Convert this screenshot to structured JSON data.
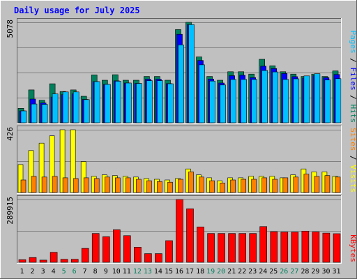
{
  "title": "Daily usage for July 2025",
  "colors": {
    "background": "#c0c0c0",
    "plot_bg": "#c0c0c0",
    "border_light": "#ffffff",
    "border_dark": "#606060",
    "title": "#0000ff",
    "gridline": "#808080",
    "hits": "#00805c",
    "files": "#0000ff",
    "pages": "#00c0ff",
    "visits": "#ffff00",
    "sites": "#ff8000",
    "kbytes": "#ff0000",
    "weekend_label": "#00805c",
    "weekday_label": "#000000"
  },
  "chart_data": [
    {
      "type": "bar",
      "panel": "hits-files-pages",
      "ymax_label": "5078",
      "ymax": 5078,
      "legend": [
        "Pages",
        "Files",
        "Hits"
      ],
      "legend_separator": " / ",
      "categories": [
        "1",
        "2",
        "3",
        "4",
        "5",
        "6",
        "7",
        "8",
        "9",
        "10",
        "11",
        "12",
        "13",
        "14",
        "15",
        "16",
        "17",
        "18",
        "19",
        "20",
        "21",
        "22",
        "23",
        "24",
        "25",
        "26",
        "27",
        "28",
        "29",
        "30",
        "31"
      ],
      "series": [
        {
          "name": "Hits",
          "color": "#00805c",
          "values": [
            730,
            1660,
            1140,
            1970,
            1580,
            1660,
            1340,
            2420,
            2150,
            2430,
            2150,
            2150,
            2340,
            2340,
            2150,
            4710,
            5078,
            3330,
            2340,
            2150,
            2580,
            2580,
            2460,
            3210,
            2880,
            2580,
            2460,
            2340,
            2460,
            2340,
            2620
          ]
        },
        {
          "name": "Files",
          "color": "#0000ff",
          "values": [
            600,
            1200,
            1000,
            1300,
            1420,
            1460,
            1180,
            2080,
            1940,
            2120,
            2010,
            1990,
            2200,
            2200,
            1980,
            4470,
            4960,
            3150,
            2210,
            2010,
            2380,
            2400,
            2280,
            2860,
            2740,
            2490,
            2330,
            2260,
            2380,
            2280,
            2440
          ]
        },
        {
          "name": "Pages",
          "color": "#00c0ff",
          "values": [
            600,
            950,
            930,
            1460,
            1560,
            1560,
            1170,
            2080,
            1940,
            2100,
            2010,
            1990,
            2130,
            2130,
            1970,
            3940,
            4960,
            2930,
            2110,
            1910,
            2190,
            2190,
            2190,
            2640,
            2570,
            2190,
            2220,
            2370,
            2480,
            2160,
            2230
          ]
        }
      ]
    },
    {
      "type": "bar",
      "panel": "visits-sites",
      "ymax_label": "426",
      "ymax": 426,
      "legend": [
        "Sites",
        "Visits"
      ],
      "legend_separator": " / ",
      "categories": [
        "1",
        "2",
        "3",
        "4",
        "5",
        "6",
        "7",
        "8",
        "9",
        "10",
        "11",
        "12",
        "13",
        "14",
        "15",
        "16",
        "17",
        "18",
        "19",
        "20",
        "21",
        "22",
        "23",
        "24",
        "25",
        "26",
        "27",
        "28",
        "29",
        "30",
        "31"
      ],
      "series": [
        {
          "name": "Visits",
          "color": "#ffff00",
          "values": [
            190,
            285,
            335,
            385,
            426,
            426,
            210,
            110,
            120,
            115,
            110,
            105,
            95,
            90,
            85,
            95,
            160,
            120,
            100,
            80,
            100,
            100,
            110,
            110,
            110,
            100,
            120,
            160,
            140,
            140,
            110
          ]
        },
        {
          "name": "Sites",
          "color": "#ff8000",
          "values": [
            85,
            110,
            105,
            110,
            100,
            95,
            100,
            95,
            105,
            100,
            100,
            90,
            80,
            75,
            70,
            90,
            140,
            105,
            80,
            65,
            85,
            90,
            90,
            100,
            90,
            100,
            105,
            125,
            110,
            115,
            105
          ]
        }
      ]
    },
    {
      "type": "bar",
      "panel": "kbytes",
      "ymax_label": "289915",
      "ymax": 289915,
      "legend": [
        "KBytes"
      ],
      "categories": [
        "1",
        "2",
        "3",
        "4",
        "5",
        "6",
        "7",
        "8",
        "9",
        "10",
        "11",
        "12",
        "13",
        "14",
        "15",
        "16",
        "17",
        "18",
        "19",
        "20",
        "21",
        "22",
        "23",
        "24",
        "25",
        "26",
        "27",
        "28",
        "29",
        "30",
        "31"
      ],
      "weekend_days": [
        "5",
        "6",
        "12",
        "13",
        "19",
        "20",
        "26",
        "27"
      ],
      "series": [
        {
          "name": "KBytes",
          "color": "#ff0000",
          "values": [
            12000,
            22000,
            10000,
            46000,
            14000,
            14000,
            64000,
            133000,
            118000,
            150000,
            123000,
            70000,
            40000,
            40000,
            100000,
            289915,
            247000,
            163000,
            133000,
            133000,
            133000,
            133000,
            133000,
            165000,
            141000,
            139000,
            139000,
            144000,
            140000,
            135000,
            132000
          ]
        }
      ]
    }
  ]
}
